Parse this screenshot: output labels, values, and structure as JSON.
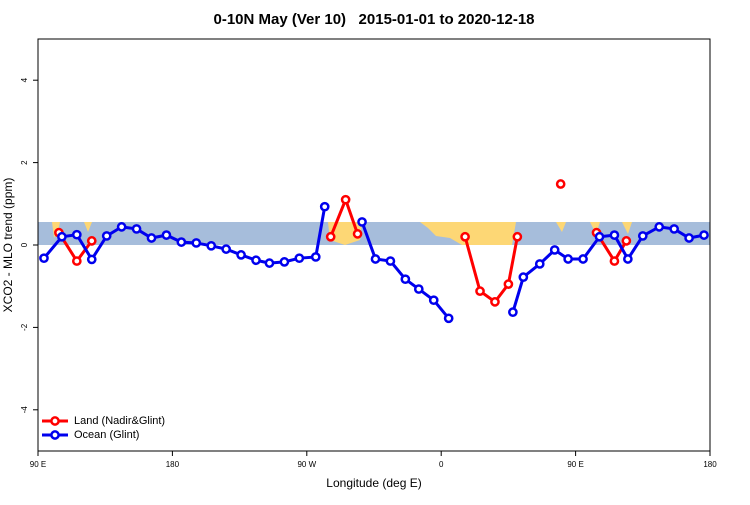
{
  "chart_data": {
    "type": "line",
    "title": "0-10N May (Ver 10)   2015-01-01 to 2020-12-18",
    "x_label": "Longitude (deg E)",
    "y_label": "XCO2 - MLO trend (ppm)",
    "xlim": [
      90,
      540
    ],
    "ylim": [
      -5,
      5
    ],
    "xticks": [
      {
        "value": 90,
        "label": "90 E"
      },
      {
        "value": 180,
        "label": "180"
      },
      {
        "value": 270,
        "label": "90 W"
      },
      {
        "value": 360,
        "label": "0"
      },
      {
        "value": 450,
        "label": "90 E"
      },
      {
        "value": 540,
        "label": "180"
      }
    ],
    "yticks": [
      -4,
      -2,
      0,
      2,
      4
    ],
    "legend_position": "bottom-left",
    "series": [
      {
        "name": "Land (Nadir&Glint)",
        "color": "#ff0000",
        "x": [
          104,
          116,
          126,
          286,
          296,
          304,
          376,
          386,
          396,
          405,
          411,
          440,
          464,
          476,
          484
        ],
        "values": [
          0.3,
          -0.39,
          0.1,
          0.2,
          1.1,
          0.27,
          0.2,
          -1.12,
          -1.38,
          -0.95,
          0.2,
          1.48,
          0.3,
          -0.39,
          0.1
        ]
      },
      {
        "name": "Ocean (Glint)",
        "color": "#0000ee",
        "x": [
          94,
          106,
          116,
          126,
          136,
          146,
          156,
          166,
          176,
          186,
          196,
          206,
          216,
          226,
          236,
          245,
          255,
          265,
          276,
          282,
          307,
          316,
          326,
          336,
          345,
          355,
          365,
          408,
          415,
          426,
          436,
          445,
          455,
          466,
          476,
          485,
          495,
          506,
          516,
          526,
          536
        ],
        "values": [
          -0.32,
          0.2,
          0.25,
          -0.35,
          0.22,
          0.44,
          0.39,
          0.17,
          0.24,
          0.07,
          0.05,
          -0.02,
          -0.1,
          -0.24,
          -0.37,
          -0.44,
          -0.41,
          -0.32,
          -0.29,
          0.93,
          0.56,
          -0.34,
          -0.39,
          -0.83,
          -1.07,
          -1.34,
          -1.78,
          -1.63,
          -0.78,
          -0.46,
          -0.12,
          -0.34,
          -0.34,
          0.2,
          0.24,
          -0.34,
          0.22,
          0.44,
          0.39,
          0.17,
          0.24
        ]
      }
    ]
  }
}
